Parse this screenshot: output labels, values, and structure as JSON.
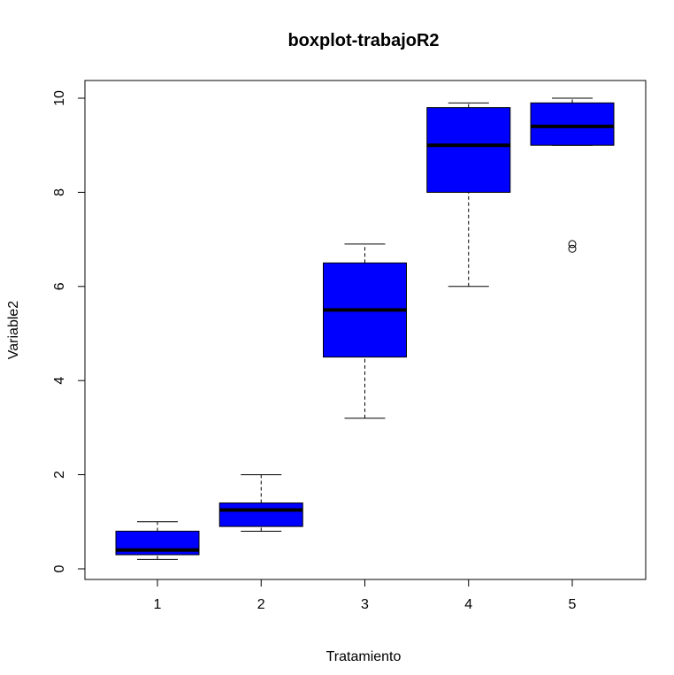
{
  "chart_data": {
    "type": "boxplot",
    "title": "boxplot-trabajoR2",
    "xlabel": "Tratamiento",
    "ylabel": "Variable2",
    "categories": [
      "1",
      "2",
      "3",
      "4",
      "5"
    ],
    "ylim": [
      -0.25,
      10.3
    ],
    "yticks": [
      0,
      2,
      4,
      6,
      8,
      10
    ],
    "box_color": "#0000ff",
    "boxes": [
      {
        "category": "1",
        "whisker_low": 0.2,
        "q1": 0.3,
        "median": 0.4,
        "q3": 0.8,
        "whisker_high": 1.0,
        "outliers": []
      },
      {
        "category": "2",
        "whisker_low": 0.8,
        "q1": 0.9,
        "median": 1.25,
        "q3": 1.4,
        "whisker_high": 2.0,
        "outliers": []
      },
      {
        "category": "3",
        "whisker_low": 3.2,
        "q1": 4.5,
        "median": 5.5,
        "q3": 6.5,
        "whisker_high": 6.9,
        "outliers": []
      },
      {
        "category": "4",
        "whisker_low": 6.0,
        "q1": 8.0,
        "median": 9.0,
        "q3": 9.8,
        "whisker_high": 9.9,
        "outliers": []
      },
      {
        "category": "5",
        "whisker_low": 9.0,
        "q1": 9.0,
        "median": 9.4,
        "q3": 9.9,
        "whisker_high": 10.0,
        "outliers": [
          6.8,
          6.9
        ]
      }
    ]
  }
}
